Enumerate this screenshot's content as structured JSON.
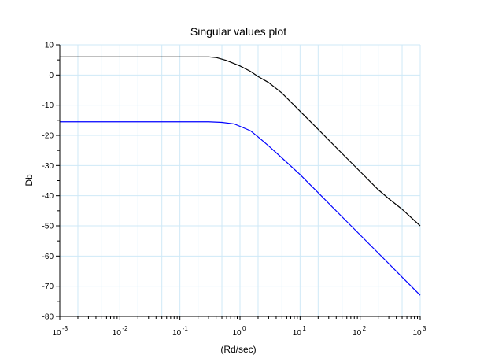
{
  "chart_data": {
    "type": "line",
    "title": "Singular values plot",
    "xlabel": "(Rd/sec)",
    "ylabel": "Db",
    "x_scale": "log",
    "xlim": [
      0.001,
      1000
    ],
    "ylim": [
      -80,
      10
    ],
    "x_ticks": [
      {
        "base": "10",
        "exp": "-3",
        "value": 0.001
      },
      {
        "base": "10",
        "exp": "-2",
        "value": 0.01
      },
      {
        "base": "10",
        "exp": "-1",
        "value": 0.1
      },
      {
        "base": "10",
        "exp": "0",
        "value": 1
      },
      {
        "base": "10",
        "exp": "1",
        "value": 10
      },
      {
        "base": "10",
        "exp": "2",
        "value": 100
      },
      {
        "base": "10",
        "exp": "3",
        "value": 1000
      }
    ],
    "y_ticks": [
      10,
      0,
      -10,
      -20,
      -30,
      -40,
      -50,
      -60,
      -70,
      -80
    ],
    "grid": true,
    "series": [
      {
        "color": "#000000",
        "x": [
          0.001,
          0.01,
          0.1,
          0.3,
          0.4,
          0.6,
          1,
          1.5,
          2,
          3,
          5,
          10,
          20,
          50,
          100,
          200,
          300,
          500,
          1000
        ],
        "y": [
          6,
          6,
          6,
          6,
          5.8,
          4.8,
          3,
          1.2,
          -0.5,
          -2.5,
          -6,
          -12,
          -18,
          -26,
          -32,
          -38,
          -41,
          -44.5,
          -50
        ]
      },
      {
        "color": "#0000ff",
        "x": [
          0.001,
          0.01,
          0.1,
          0.3,
          0.5,
          0.8,
          1,
          1.5,
          2,
          3,
          5,
          10,
          20,
          50,
          100,
          200,
          500,
          1000
        ],
        "y": [
          -15.5,
          -15.5,
          -15.5,
          -15.5,
          -15.7,
          -16.2,
          -17,
          -18.5,
          -20.5,
          -23.5,
          -27.5,
          -33,
          -39,
          -47,
          -53,
          -59,
          -67,
          -73
        ]
      }
    ]
  }
}
